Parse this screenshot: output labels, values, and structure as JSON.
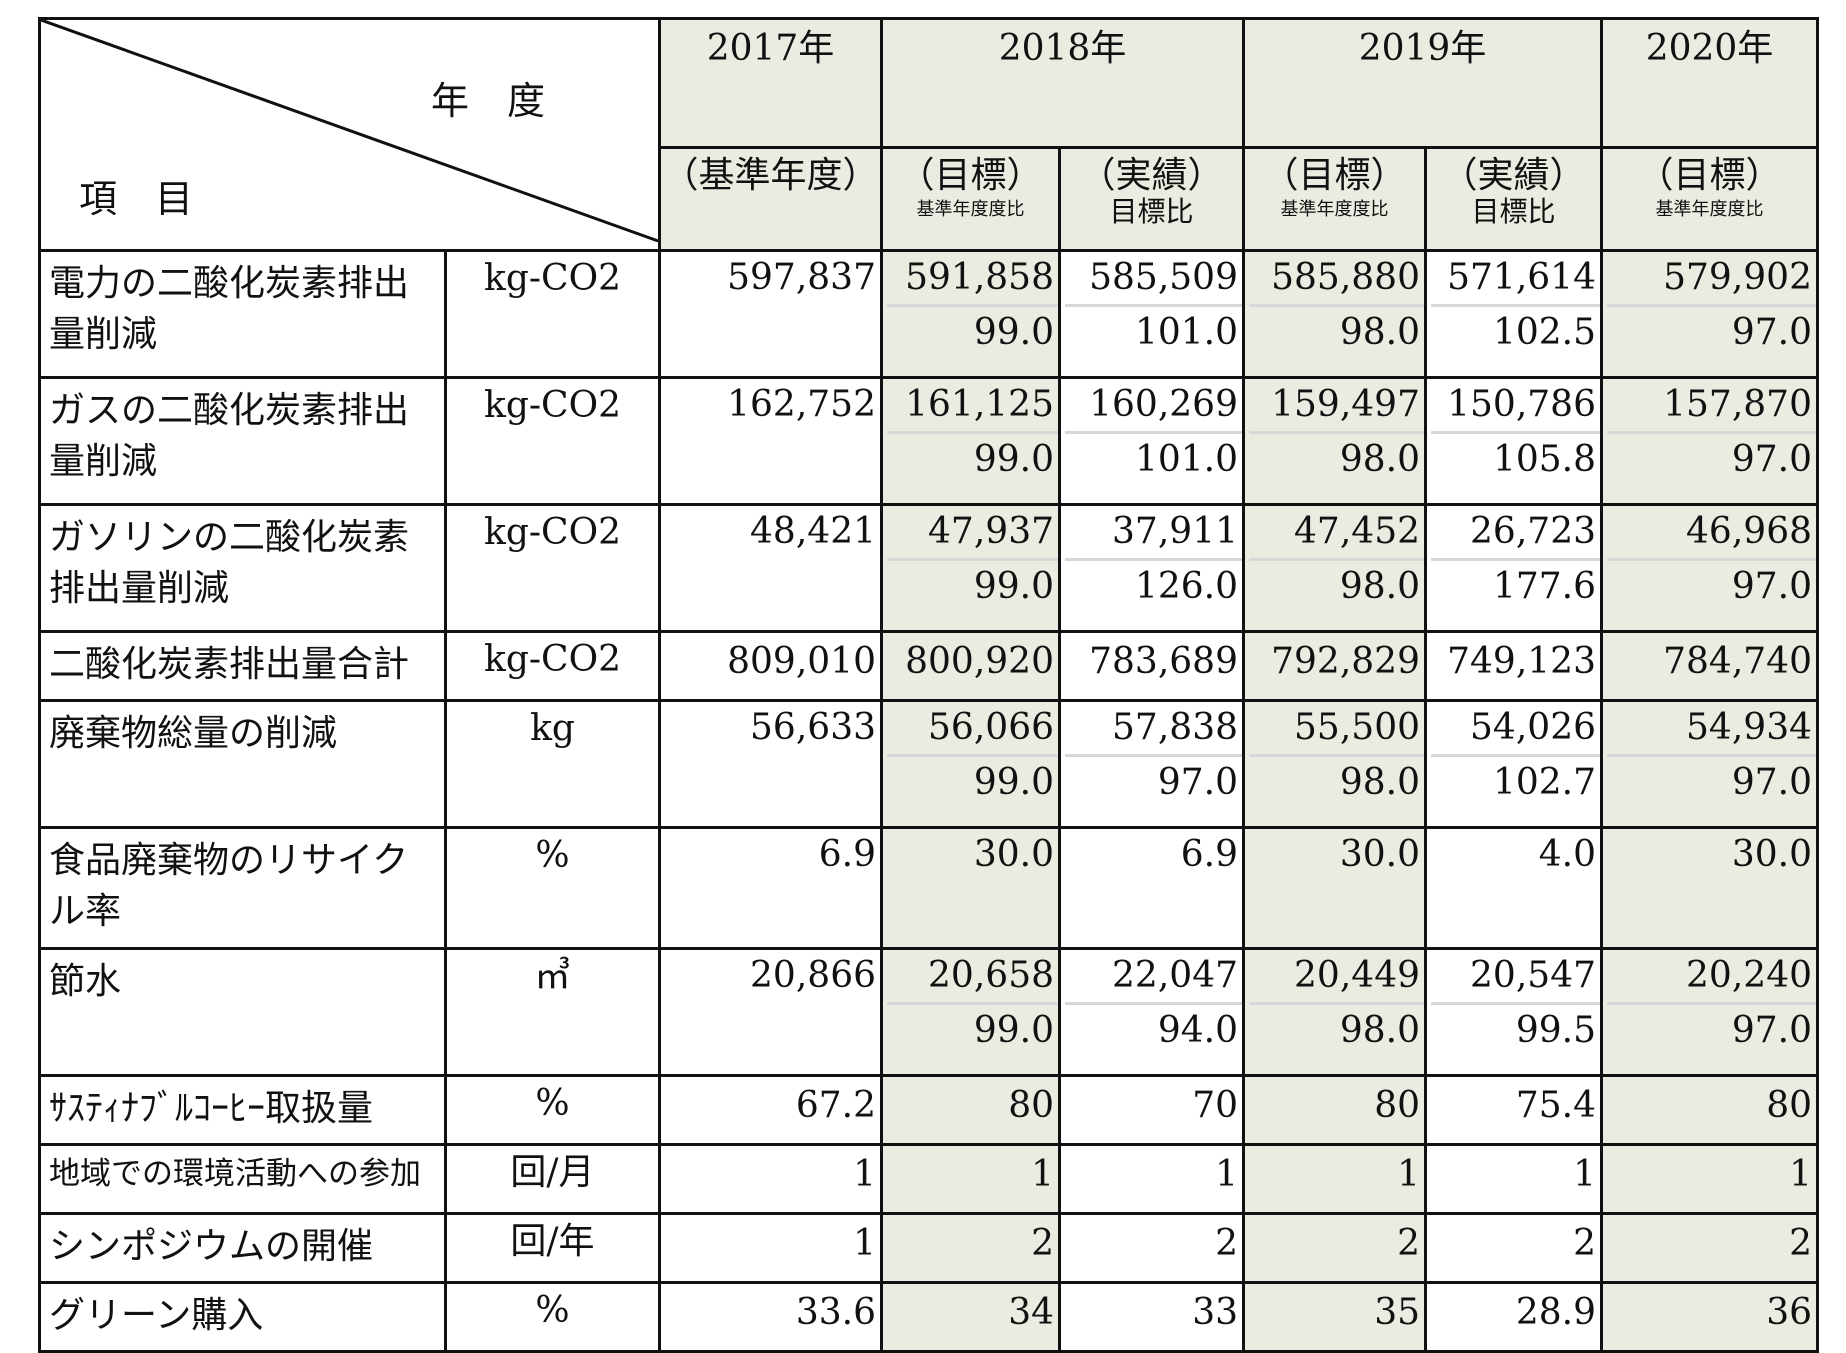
{
  "header": {
    "nendo": "年　度",
    "komoku": "項　目",
    "years": [
      "2017年",
      "2018年",
      "2019年",
      "2020年"
    ],
    "sub": {
      "base": "（基準年度）",
      "target": "（目標）",
      "actual": "（実績）",
      "base_ratio": "基準年度度比",
      "target_ratio": "目標比"
    }
  },
  "rows": [
    {
      "item": "電力の二酸化炭素排出量削減",
      "unit": "kg-CO2",
      "v": [
        "597,837",
        "591,858",
        "585,509",
        "585,880",
        "571,614",
        "579,902"
      ],
      "r": [
        "",
        "99.0",
        "101.0",
        "98.0",
        "102.5",
        "97.0"
      ]
    },
    {
      "item": "ガスの二酸化炭素排出量削減",
      "unit": "kg-CO2",
      "v": [
        "162,752",
        "161,125",
        "160,269",
        "159,497",
        "150,786",
        "157,870"
      ],
      "r": [
        "",
        "99.0",
        "101.0",
        "98.0",
        "105.8",
        "97.0"
      ]
    },
    {
      "item": "ガソリンの二酸化炭素排出量削減",
      "unit": "kg-CO2",
      "v": [
        "48,421",
        "47,937",
        "37,911",
        "47,452",
        "26,723",
        "46,968"
      ],
      "r": [
        "",
        "99.0",
        "126.0",
        "98.0",
        "177.6",
        "97.0"
      ]
    },
    {
      "item": "二酸化炭素排出量合計",
      "unit": "kg-CO2",
      "v": [
        "809,010",
        "800,920",
        "783,689",
        "792,829",
        "749,123",
        "784,740"
      ]
    },
    {
      "item": "廃棄物総量の削減",
      "unit": "kg",
      "v": [
        "56,633",
        "56,066",
        "57,838",
        "55,500",
        "54,026",
        "54,934"
      ],
      "r": [
        "",
        "99.0",
        "97.0",
        "98.0",
        "102.7",
        "97.0"
      ]
    },
    {
      "item": "食品廃棄物のリサイクル率",
      "unit": "%",
      "v": [
        "6.9",
        "30.0",
        "6.9",
        "30.0",
        "4.0",
        "30.0"
      ]
    },
    {
      "item": "節水",
      "unit": "㎥",
      "v": [
        "20,866",
        "20,658",
        "22,047",
        "20,449",
        "20,547",
        "20,240"
      ],
      "r": [
        "",
        "99.0",
        "94.0",
        "98.0",
        "99.5",
        "97.0"
      ]
    },
    {
      "item": "ｻｽﾃｨﾅﾌﾞﾙｺｰﾋｰ取扱量",
      "unit": "%",
      "v": [
        "67.2",
        "80",
        "70",
        "80",
        "75.4",
        "80"
      ]
    },
    {
      "item": "地域での環境活動への参加",
      "unit": "回/月",
      "v": [
        "1",
        "1",
        "1",
        "1",
        "1",
        "1"
      ]
    },
    {
      "item": "シンポジウムの開催",
      "unit": "回/年",
      "v": [
        "1",
        "2",
        "2",
        "2",
        "2",
        "2"
      ]
    },
    {
      "item": "グリーン購入",
      "unit": "%",
      "v": [
        "33.6",
        "34",
        "33",
        "35",
        "28.9",
        "36"
      ]
    }
  ]
}
